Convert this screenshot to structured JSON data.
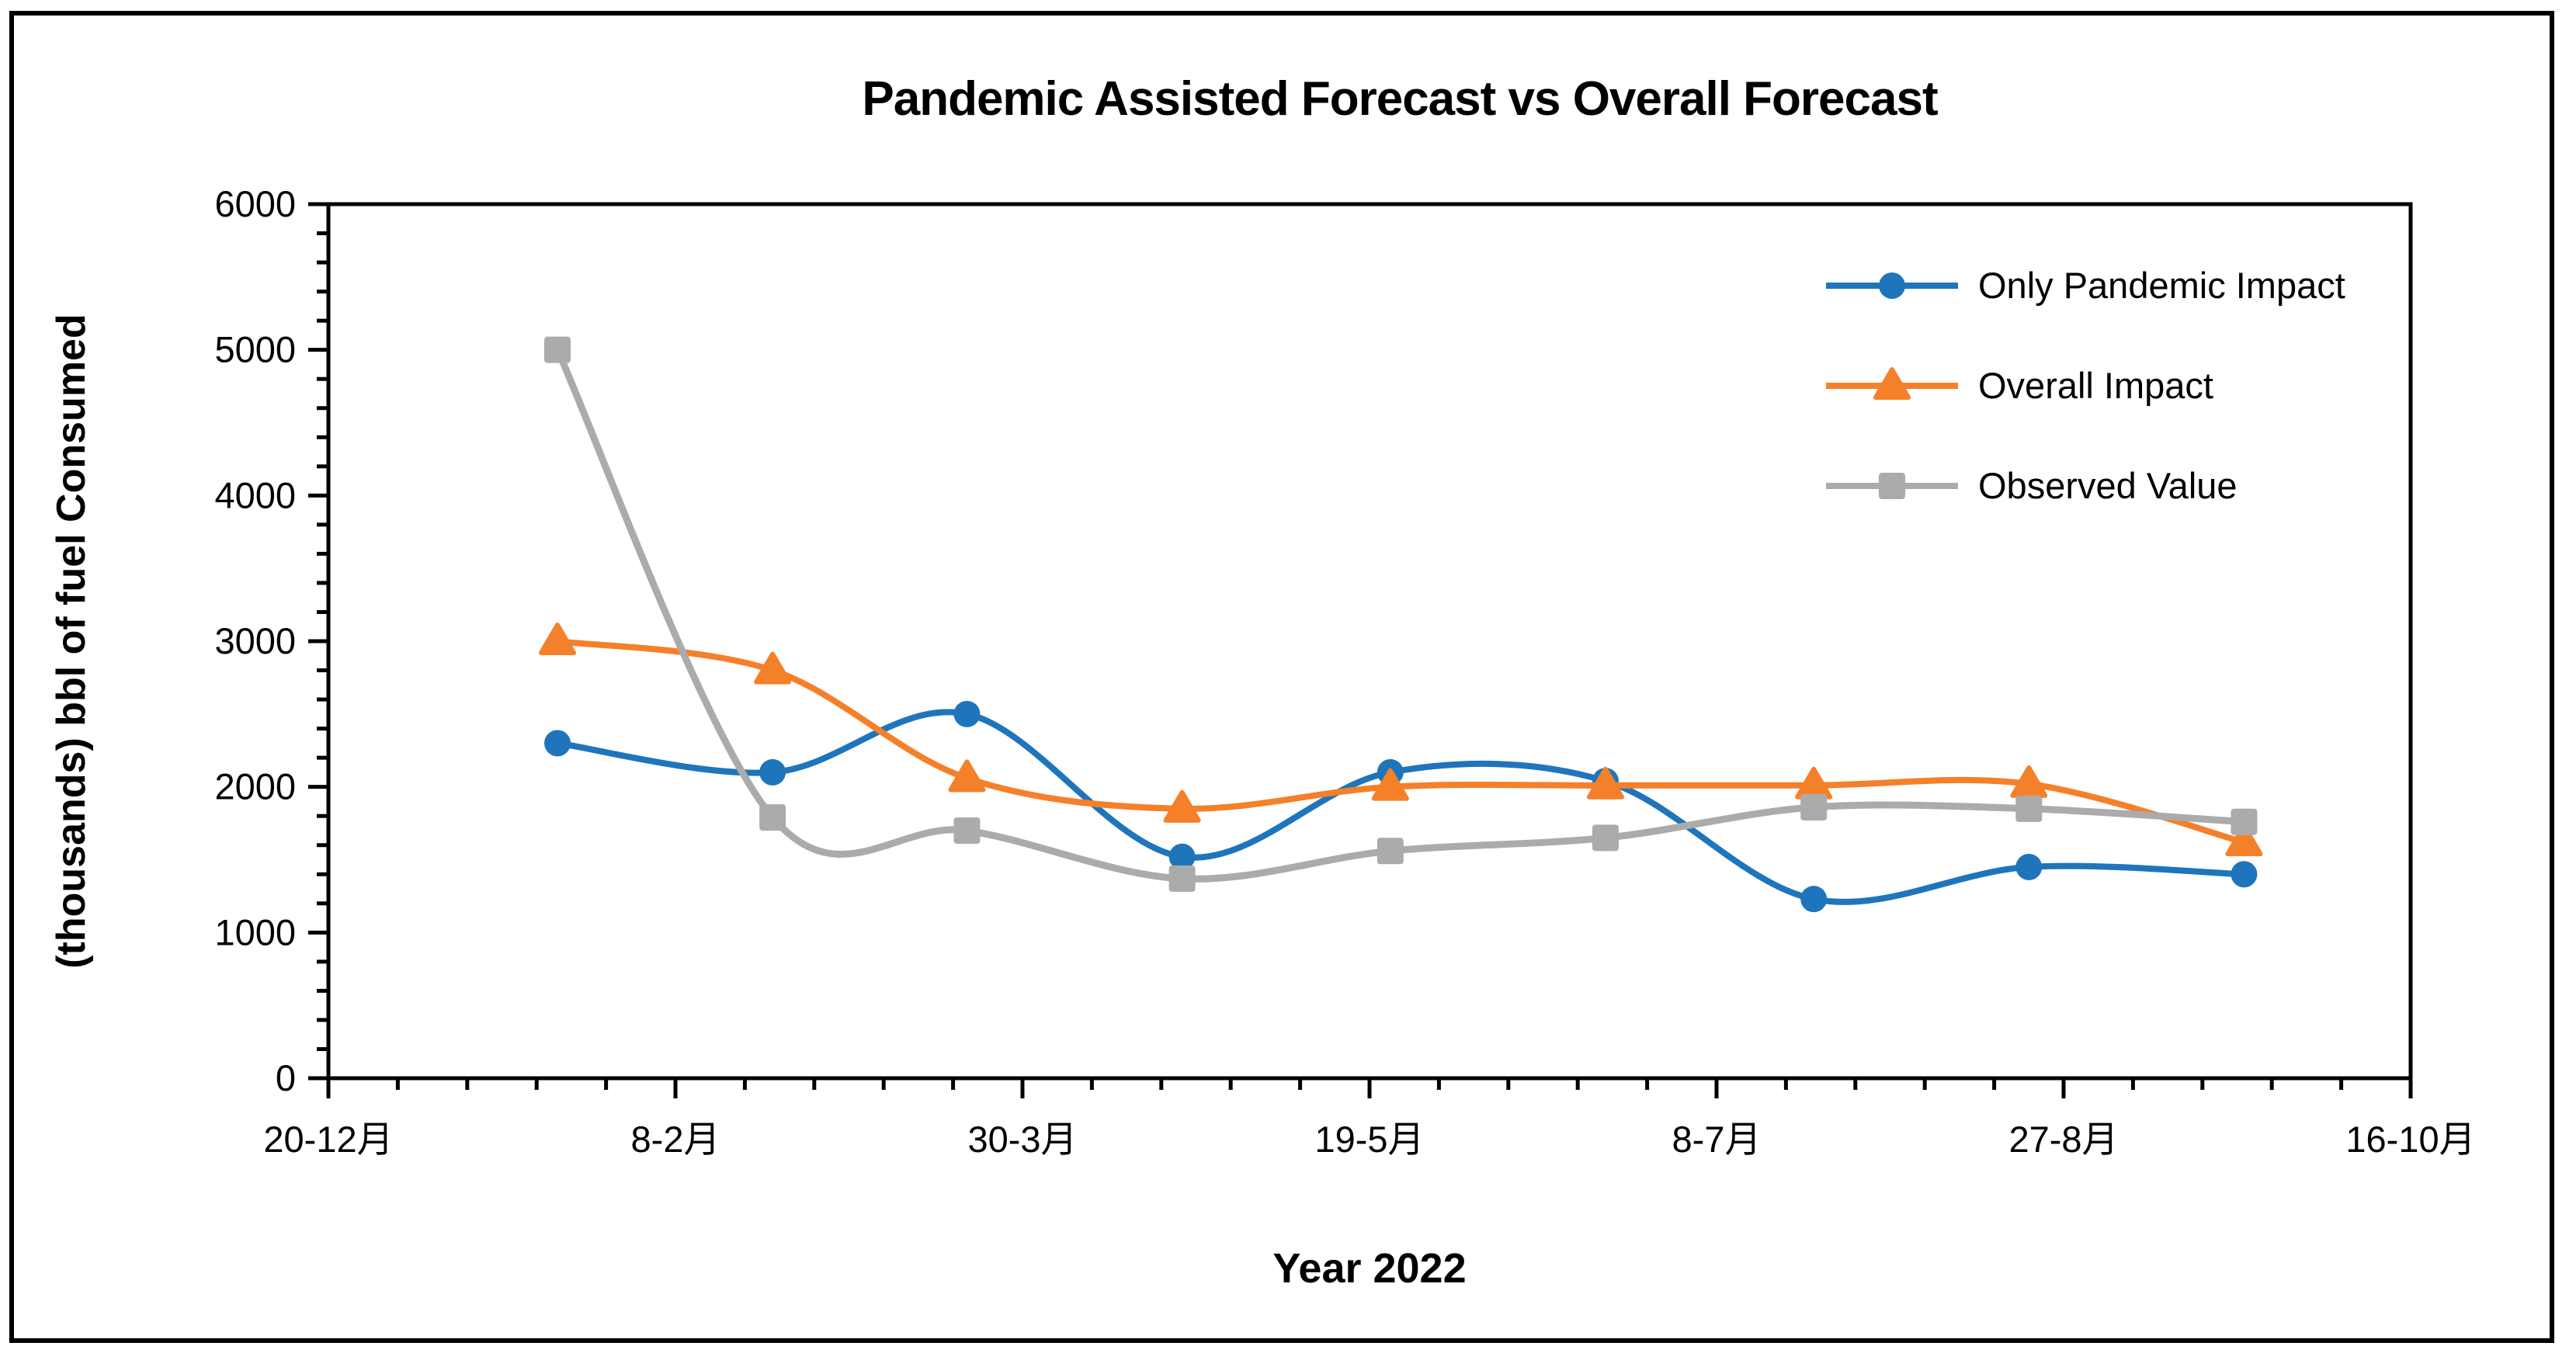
{
  "chart_data": {
    "type": "line",
    "title": "Pandemic Assisted Forecast vs Overall Forecast",
    "xlabel": "Year 2022",
    "ylabel": "(thousands) bbl of fuel Consumed",
    "grid": false,
    "smooth_lines": true,
    "legend_position": "top-right-inside",
    "ylim": [
      0,
      6000
    ],
    "y_major_step": 1000,
    "y_minor_step": 200,
    "y_tick_labels": [
      "0",
      "1000",
      "2000",
      "3000",
      "4000",
      "5000",
      "6000"
    ],
    "x_range_days": [
      0,
      300
    ],
    "x_minor_step_days": 10,
    "x_tick_days": [
      0,
      50,
      100,
      150,
      200,
      250,
      300
    ],
    "x_tick_labels": [
      "20-12月",
      "8-2月",
      "30-3月",
      "19-5月",
      "8-7月",
      "27-8月",
      "16-10月"
    ],
    "x_days_since_first_tick": [
      33,
      64,
      92,
      123,
      153,
      184,
      214,
      245,
      276
    ],
    "series": [
      {
        "name": "Only Pandemic Impact",
        "marker": "circle",
        "color": "#1F75BB",
        "values": [
          2300,
          2100,
          2500,
          1520,
          2100,
          2040,
          1230,
          1450,
          1400
        ]
      },
      {
        "name": "Overall Impact",
        "marker": "triangle",
        "color": "#F5802A",
        "values": [
          3000,
          2800,
          2060,
          1850,
          2000,
          2010,
          2010,
          2020,
          1620
        ]
      },
      {
        "name": "Observed Value",
        "marker": "square",
        "color": "#ABABAB",
        "values": [
          5000,
          1790,
          1700,
          1370,
          1560,
          1650,
          1860,
          1850,
          1760
        ]
      }
    ],
    "axis_color": "#000000",
    "background_color": "#FFFFFF"
  }
}
